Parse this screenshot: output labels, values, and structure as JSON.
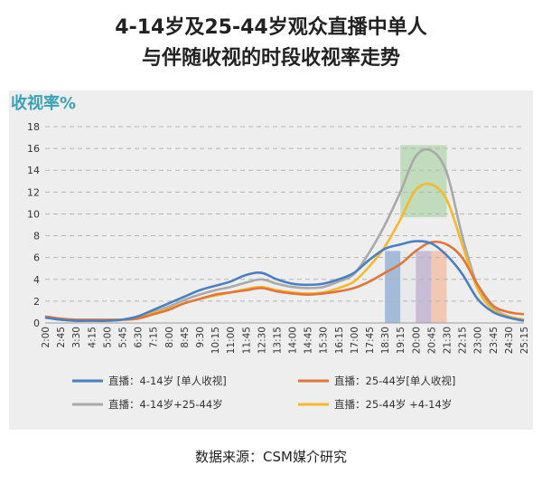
{
  "header": {
    "title_line1": "4-14岁及25-44岁观众直播中单人",
    "title_line2": "与伴随收视的时段收视率走势"
  },
  "footer": {
    "source": "数据来源：CSM媒介研究"
  },
  "chart_data": {
    "type": "line",
    "title": "4-14岁及25-44岁观众直播中单人与伴随收视的时段收视率走势",
    "ylabel": "收视率%",
    "xlabel": "",
    "ylim": [
      0,
      18
    ],
    "yticks": [
      0,
      2,
      4,
      6,
      8,
      10,
      12,
      14,
      16,
      18
    ],
    "grid": true,
    "legend_position": "bottom",
    "x": [
      "2:00",
      "2:45",
      "3:30",
      "4:15",
      "5:00",
      "5:45",
      "6:30",
      "7:15",
      "8:00",
      "8:45",
      "9:30",
      "10:15",
      "11:00",
      "11:45",
      "12:30",
      "13:15",
      "14:00",
      "14:45",
      "15:30",
      "16:15",
      "17:00",
      "17:45",
      "18:30",
      "19:15",
      "20:00",
      "20:45",
      "21:30",
      "22:15",
      "23:00",
      "23:45",
      "24:30",
      "25:15"
    ],
    "series": [
      {
        "name": "直播：4-14岁 [单人收视]",
        "color": "#4a7fc1",
        "values": [
          0.5,
          0.3,
          0.2,
          0.2,
          0.2,
          0.3,
          0.6,
          1.2,
          1.8,
          2.4,
          3.0,
          3.4,
          3.8,
          4.4,
          4.6,
          4.0,
          3.6,
          3.5,
          3.6,
          4.0,
          4.6,
          5.8,
          6.8,
          7.2,
          7.5,
          7.3,
          6.2,
          4.5,
          2.2,
          1.0,
          0.5,
          0.2
        ]
      },
      {
        "name": "直播：25-44岁[单人收视]",
        "color": "#e0763a",
        "values": [
          0.6,
          0.4,
          0.3,
          0.3,
          0.3,
          0.3,
          0.4,
          0.8,
          1.2,
          1.8,
          2.2,
          2.6,
          2.8,
          3.0,
          3.2,
          2.9,
          2.7,
          2.6,
          2.7,
          2.9,
          3.2,
          3.8,
          4.6,
          5.4,
          6.6,
          7.4,
          7.2,
          6.0,
          3.5,
          1.6,
          1.0,
          0.8
        ]
      },
      {
        "name": "直播：4-14岁+25-44岁",
        "color": "#a9a9a9",
        "values": [
          0.5,
          0.3,
          0.2,
          0.2,
          0.2,
          0.3,
          0.6,
          1.0,
          1.5,
          2.1,
          2.6,
          3.0,
          3.3,
          3.7,
          4.0,
          3.6,
          3.3,
          3.2,
          3.3,
          3.8,
          4.5,
          6.5,
          9.0,
          12.0,
          15.3,
          15.8,
          13.8,
          8.0,
          3.4,
          1.4,
          0.6,
          0.3
        ]
      },
      {
        "name": "直播：25-44岁 +4-14岁",
        "color": "#f6b82c",
        "values": [
          0.5,
          0.3,
          0.2,
          0.2,
          0.2,
          0.3,
          0.5,
          0.9,
          1.3,
          1.8,
          2.2,
          2.5,
          2.8,
          3.1,
          3.3,
          3.0,
          2.8,
          2.7,
          2.8,
          3.2,
          3.8,
          5.2,
          7.0,
          9.5,
          12.2,
          12.7,
          11.3,
          7.2,
          3.1,
          1.2,
          0.6,
          0.3
        ]
      }
    ],
    "highlight_bands": [
      {
        "x_from": "18:30",
        "x_to": "19:15",
        "y_from": 0,
        "y_to": 6.6,
        "color": "#7e9fcf"
      },
      {
        "x_from": "19:15",
        "x_to": "20:00",
        "y_from": 0,
        "y_to": 6.6,
        "color": "#e6e6e6"
      },
      {
        "x_from": "20:00",
        "x_to": "20:45",
        "y_from": 0,
        "y_to": 6.6,
        "color": "#b3a2c9"
      },
      {
        "x_from": "20:45",
        "x_to": "21:30",
        "y_from": 0,
        "y_to": 6.6,
        "color": "#f2b593"
      },
      {
        "x_from": "19:15",
        "x_to": "21:30",
        "y_from": 9.7,
        "y_to": 16.3,
        "color": "#a9d3a2"
      }
    ]
  }
}
